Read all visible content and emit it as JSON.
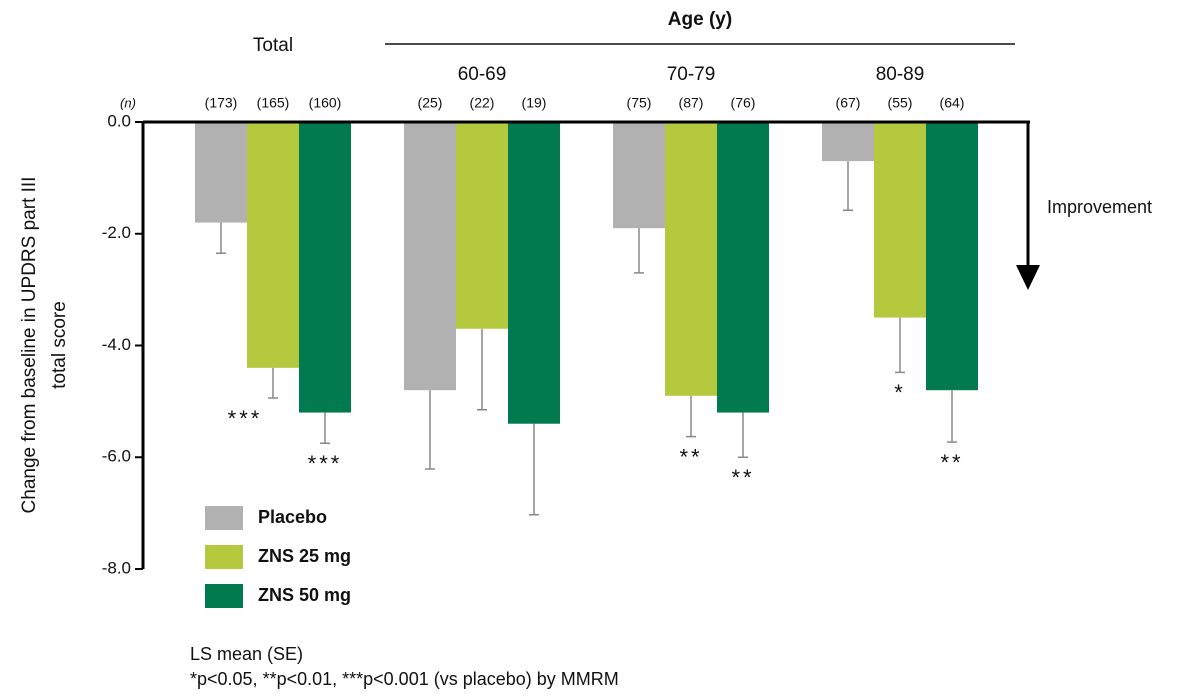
{
  "chart_data": {
    "type": "bar",
    "y_label": [
      "Change from baseline in UPDRS part III",
      "total score"
    ],
    "categories": [
      "Total",
      "60-69",
      "70-79",
      "80-89"
    ],
    "group_header": "Age (y)",
    "n_header": "(n)",
    "direction_label": "Improvement",
    "series": [
      {
        "name": "Placebo",
        "color": "#b1b1b1",
        "values": [
          -1.8,
          -4.8,
          -1.9,
          -0.7
        ],
        "errors": [
          0.55,
          1.41,
          0.8,
          0.88
        ],
        "n_labels": [
          "(173)",
          "(25)",
          "(75)",
          "(67)"
        ],
        "significance": [
          null,
          null,
          null,
          null
        ]
      },
      {
        "name": "ZNS 25 mg",
        "color": "#b5c93e",
        "values": [
          -4.4,
          -3.7,
          -4.9,
          -3.5
        ],
        "errors": [
          0.54,
          1.45,
          0.73,
          0.98
        ],
        "n_labels": [
          "(165)",
          "(22)",
          "(87)",
          "(55)"
        ],
        "significance": [
          "***",
          null,
          "**",
          "*"
        ]
      },
      {
        "name": "ZNS 50 mg",
        "color": "#007a4e",
        "values": [
          -5.2,
          -5.4,
          -5.2,
          -4.8
        ],
        "errors": [
          0.55,
          1.63,
          0.8,
          0.93
        ],
        "n_labels": [
          "(160)",
          "(19)",
          "(76)",
          "(64)"
        ],
        "significance": [
          "***",
          null,
          "**",
          "**"
        ]
      }
    ],
    "ylim": [
      -8,
      0
    ],
    "yticks": [
      {
        "value": 0,
        "label": "0.0"
      },
      {
        "value": -2,
        "label": "-2.0"
      },
      {
        "value": -4,
        "label": "-4.0"
      },
      {
        "value": -6,
        "label": "-6.0"
      },
      {
        "value": -8,
        "label": "-8.0"
      }
    ],
    "footnotes": [
      "LS mean (SE)",
      "*p<0.05, **p<0.01, ***p<0.001 (vs placebo) by MMRM"
    ]
  }
}
